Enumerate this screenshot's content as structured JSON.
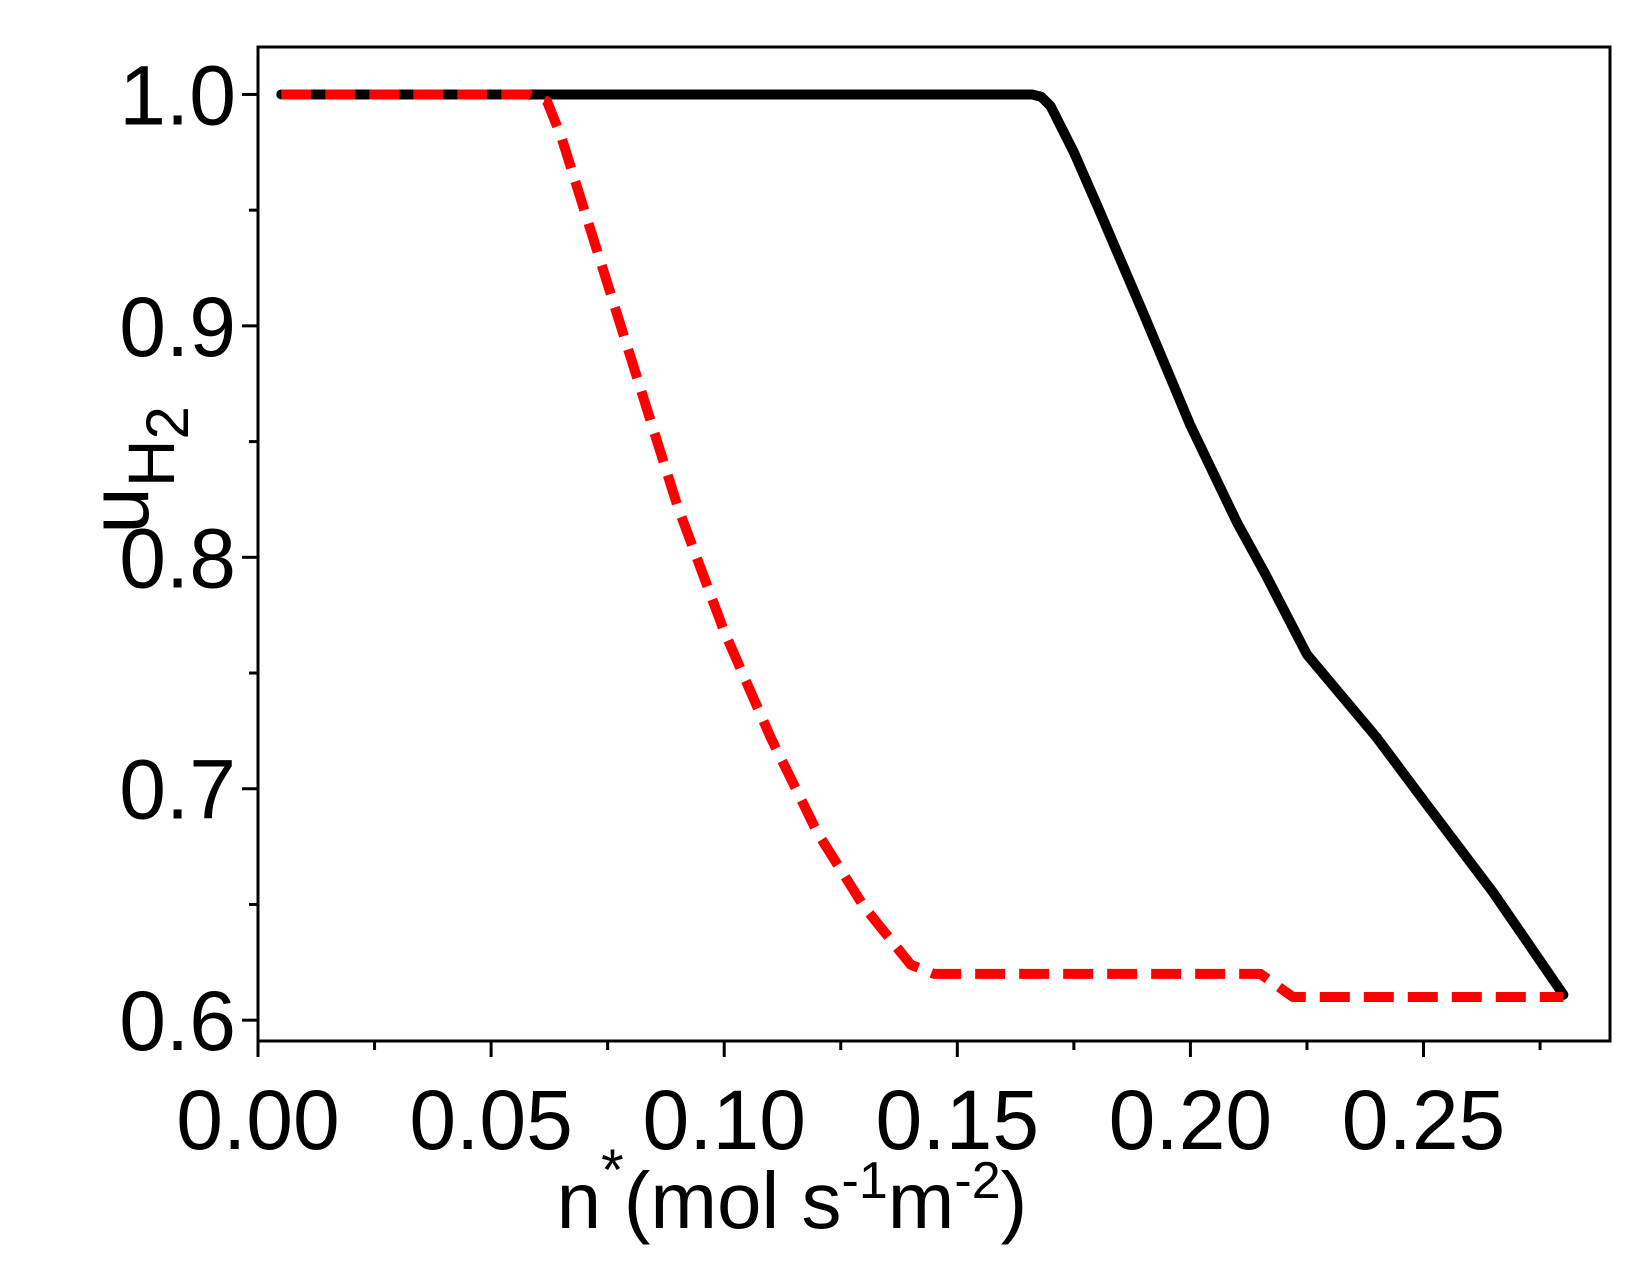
{
  "chart_data": {
    "type": "line",
    "xlabel": [
      "n",
      "*",
      "(mol s",
      "-1",
      "m",
      "-2",
      ")"
    ],
    "ylabel": [
      "u",
      "H",
      "2"
    ],
    "xlim": [
      0,
      0.29
    ],
    "ylim": [
      0.591,
      1.0205
    ],
    "xticks": [
      {
        "value": 0,
        "label": "0.00"
      },
      0.05,
      {
        "value": 0.1,
        "label": "0.10"
      },
      0.15,
      {
        "value": 0.2,
        "label": "0.20"
      },
      0.25
    ],
    "xminorticks": [
      0.025,
      0.075,
      0.125,
      0.175,
      0.225,
      0.275
    ],
    "yticks": [
      0.6,
      0.7,
      0.8,
      0.9,
      {
        "value": 1,
        "label": "1.0"
      }
    ],
    "yminorticks": [
      0.65,
      0.75,
      0.85,
      0.95
    ],
    "series": [
      {
        "color": "#000000",
        "dash": false,
        "x": [
          0.005,
          0.1,
          0.166,
          0.168,
          0.17,
          0.175,
          0.18,
          0.19,
          0.2,
          0.21,
          0.216,
          0.225,
          0.24,
          0.25,
          0.265,
          0.28
        ],
        "values": [
          1.0,
          1.0,
          1.0,
          0.999,
          0.995,
          0.975,
          0.952,
          0.905,
          0.857,
          0.815,
          0.793,
          0.758,
          0.722,
          0.695,
          0.655,
          0.611
        ]
      },
      {
        "color": "#ff0000",
        "dash": true,
        "x": [
          0.005,
          0.058,
          0.062,
          0.065,
          0.07,
          0.08,
          0.09,
          0.1,
          0.11,
          0.12,
          0.13,
          0.14,
          0.145,
          0.215,
          0.222,
          0.28
        ],
        "values": [
          1.0,
          1.0,
          0.997,
          0.982,
          0.95,
          0.886,
          0.822,
          0.768,
          0.722,
          0.681,
          0.649,
          0.624,
          0.62,
          0.62,
          0.61,
          0.61
        ]
      }
    ]
  }
}
